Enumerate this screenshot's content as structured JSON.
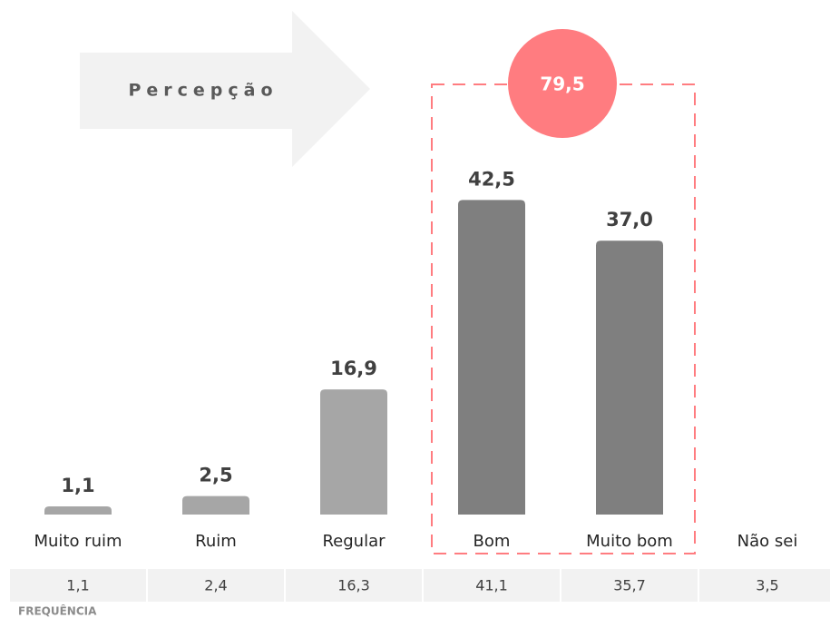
{
  "chart_data": {
    "type": "bar",
    "banner": "Percepção",
    "categories": [
      "Muito ruim",
      "Ruim",
      "Regular",
      "Bom",
      "Muito bom",
      "Não sei"
    ],
    "values": [
      1.1,
      2.5,
      16.9,
      42.5,
      37.0,
      null
    ],
    "value_labels": [
      "1,1",
      "2,5",
      "16,9",
      "42,5",
      "37,0",
      null
    ],
    "colors": [
      "#a6a6a6",
      "#a6a6a6",
      "#a6a6a6",
      "#7f7f7f",
      "#7f7f7f",
      "#7f7f7f"
    ],
    "ylim": [
      0,
      45
    ],
    "highlight": {
      "value": 79.5,
      "label": "79,5",
      "color": "#ff7c80"
    },
    "frequency": {
      "label": "FREQUÊNCIA",
      "values": [
        "1,1",
        "2,4",
        "16,3",
        "41,1",
        "35,7",
        "3,5"
      ]
    }
  }
}
